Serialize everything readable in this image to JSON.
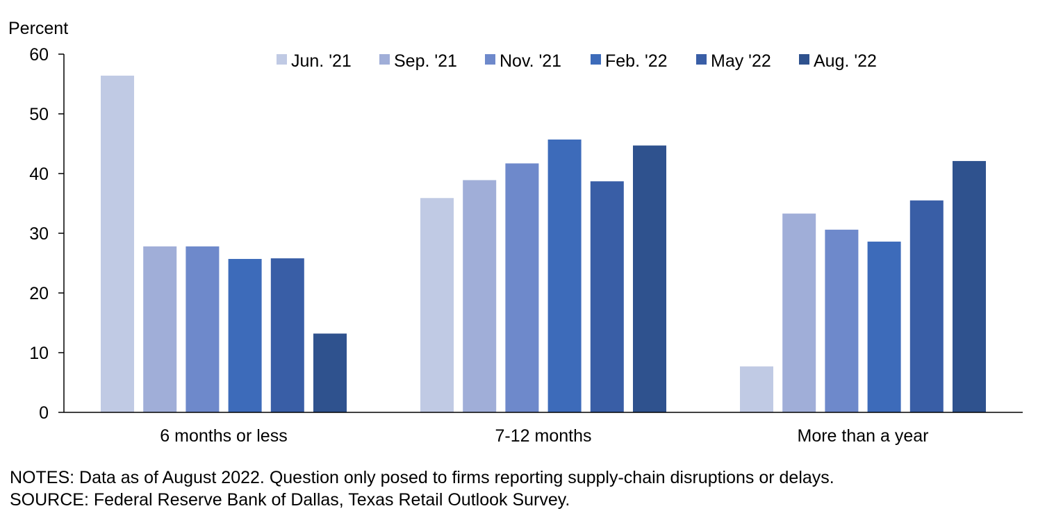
{
  "chart_data": {
    "type": "bar",
    "ylabel": "Percent",
    "ylim": [
      0,
      60
    ],
    "yticks": [
      0,
      10,
      20,
      30,
      40,
      50,
      60
    ],
    "categories": [
      "6 months or less",
      "7-12 months",
      "More than a year"
    ],
    "series": [
      {
        "name": "Jun. '21",
        "color": "#C0CAE4",
        "values": [
          56.4,
          35.9,
          7.7
        ]
      },
      {
        "name": "Sep. '21",
        "color": "#A0AED8",
        "values": [
          27.8,
          38.9,
          33.3
        ]
      },
      {
        "name": "Nov. '21",
        "color": "#6E89CB",
        "values": [
          27.8,
          41.7,
          30.6
        ]
      },
      {
        "name": "Feb. '22",
        "color": "#3D6BBA",
        "values": [
          25.7,
          45.7,
          28.6
        ]
      },
      {
        "name": "May '22",
        "color": "#395EA6",
        "values": [
          25.8,
          38.7,
          35.5
        ]
      },
      {
        "name": "Aug. '22",
        "color": "#2F528E",
        "values": [
          13.2,
          44.7,
          42.1
        ]
      }
    ],
    "legend_position": "top",
    "grid": false
  },
  "notes": {
    "line1": "NOTES: Data as of August 2022. Question only posed to firms reporting supply-chain disruptions or delays.",
    "line2": "SOURCE: Federal Reserve Bank of Dallas, Texas Retail Outlook Survey."
  }
}
